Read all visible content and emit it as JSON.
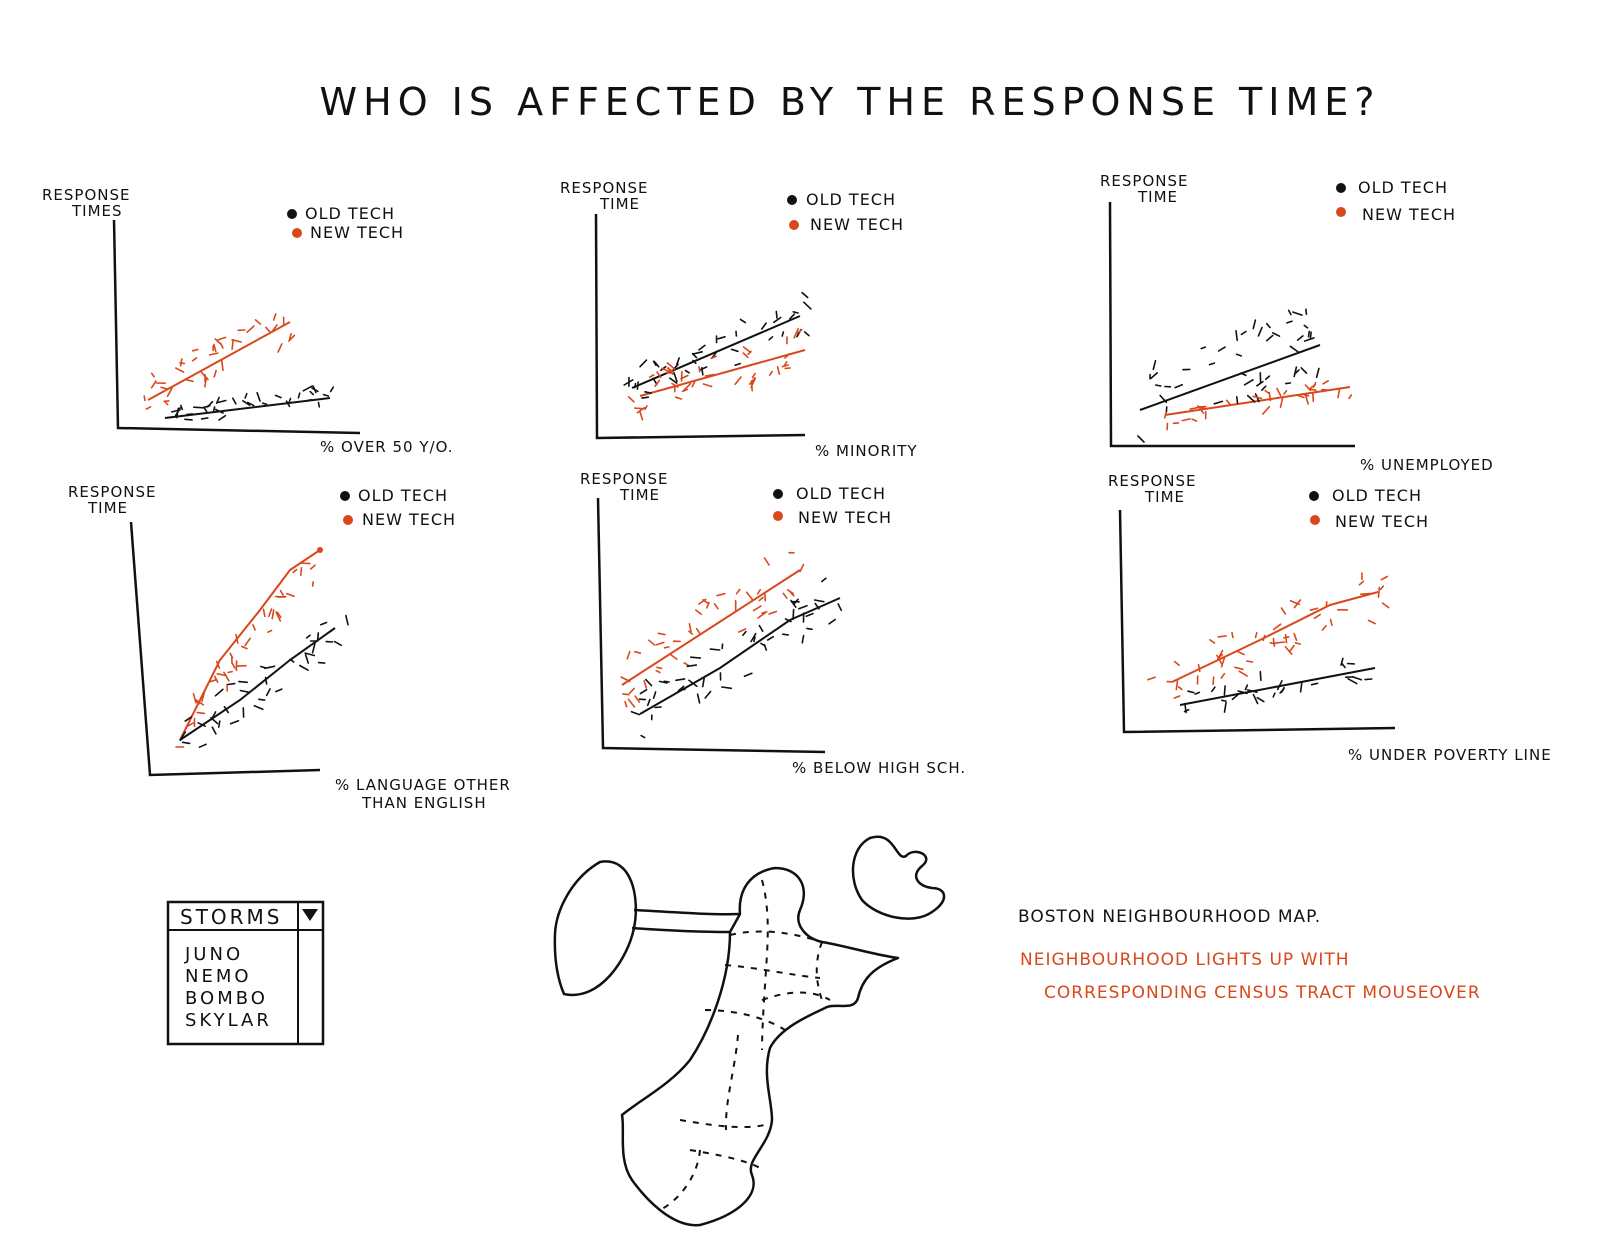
{
  "title": "WHO IS AFFECTED BY THE RESPONSE TIME?",
  "colors": {
    "old_tech": "#111111",
    "new_tech": "#d9481c"
  },
  "charts": [
    {
      "id": "over-50",
      "ylabel": [
        "RESPONSE",
        "TIMES"
      ],
      "xlabel": [
        "% OVER 50 Y/O."
      ],
      "legend": {
        "old": "OLD TECH",
        "new": "NEW TECH"
      }
    },
    {
      "id": "minority",
      "ylabel": [
        "RESPONSE",
        "TIME"
      ],
      "xlabel": [
        "% MINORITY"
      ],
      "legend": {
        "old": "OLD TECH",
        "new": "NEW TECH"
      }
    },
    {
      "id": "unemployed",
      "ylabel": [
        "RESPONSE",
        "TIME"
      ],
      "xlabel": [
        "% UNEMPLOYED"
      ],
      "legend": {
        "old": "OLD TECH",
        "new": "NEW TECH"
      }
    },
    {
      "id": "language",
      "ylabel": [
        "RESPONSE",
        "TIME"
      ],
      "xlabel": [
        "% LANGUAGE OTHER",
        "THAN ENGLISH"
      ],
      "legend": {
        "old": "OLD TECH",
        "new": "NEW TECH"
      }
    },
    {
      "id": "below-high-school",
      "ylabel": [
        "RESPONSE",
        "TIME"
      ],
      "xlabel": [
        "% BELOW HIGH SCH."
      ],
      "legend": {
        "old": "OLD TECH",
        "new": "NEW TECH"
      }
    },
    {
      "id": "poverty",
      "ylabel": [
        "RESPONSE",
        "TIME"
      ],
      "xlabel": [
        "% UNDER POVERTY LINE"
      ],
      "legend": {
        "old": "OLD TECH",
        "new": "NEW TECH"
      }
    }
  ],
  "storm_dropdown": {
    "label": "STORMS",
    "arrow_icon": "triangle-down-icon",
    "options": [
      "JUNO",
      "NEMO",
      "BOMBO",
      "SKYLAR"
    ]
  },
  "map": {
    "title": "BOSTON NEIGHBOURHOOD MAP.",
    "note_line1": "NEIGHBOURHOOD LIGHTS UP WITH",
    "note_line2": "CORRESPONDING CENSUS TRACT MOUSEOVER"
  }
}
